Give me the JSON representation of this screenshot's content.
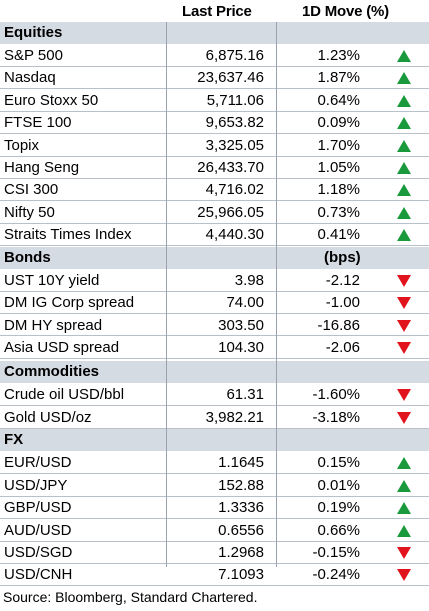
{
  "header": {
    "last_price": "Last Price",
    "move": "1D Move (%)"
  },
  "sections": [
    {
      "title": "Equities",
      "unit": "",
      "rows": [
        {
          "name": "S&P 500",
          "price": "6,875.16",
          "move": "1.23%",
          "dir": "up"
        },
        {
          "name": "Nasdaq",
          "price": "23,637.46",
          "move": "1.87%",
          "dir": "up"
        },
        {
          "name": "Euro Stoxx 50",
          "price": "5,711.06",
          "move": "0.64%",
          "dir": "up"
        },
        {
          "name": "FTSE 100",
          "price": "9,653.82",
          "move": "0.09%",
          "dir": "up"
        },
        {
          "name": "Topix",
          "price": "3,325.05",
          "move": "1.70%",
          "dir": "up"
        },
        {
          "name": "Hang Seng",
          "price": "26,433.70",
          "move": "1.05%",
          "dir": "up"
        },
        {
          "name": "CSI 300",
          "price": "4,716.02",
          "move": "1.18%",
          "dir": "up"
        },
        {
          "name": "Nifty 50",
          "price": "25,966.05",
          "move": "0.73%",
          "dir": "up"
        },
        {
          "name": "Straits Times Index",
          "price": "4,440.30",
          "move": "0.41%",
          "dir": "up"
        }
      ]
    },
    {
      "title": "Bonds",
      "unit": "(bps)",
      "rows": [
        {
          "name": "UST 10Y yield",
          "price": "3.98",
          "move": "-2.12",
          "dir": "down"
        },
        {
          "name": "DM IG Corp spread",
          "price": "74.00",
          "move": "-1.00",
          "dir": "down"
        },
        {
          "name": "DM HY spread",
          "price": "303.50",
          "move": "-16.86",
          "dir": "down"
        },
        {
          "name": "Asia USD spread",
          "price": "104.30",
          "move": "-2.06",
          "dir": "down"
        }
      ]
    },
    {
      "title": "Commodities",
      "unit": "",
      "rows": [
        {
          "name": "Crude oil USD/bbl",
          "price": "61.31",
          "move": "-1.60%",
          "dir": "down"
        },
        {
          "name": "Gold USD/oz",
          "price": "3,982.21",
          "move": "-3.18%",
          "dir": "down"
        }
      ]
    },
    {
      "title": "FX",
      "unit": "",
      "rows": [
        {
          "name": "",
          "price": "",
          "move": "",
          "dir": ""
        },
        {
          "name": "EUR/USD",
          "price": "1.1645",
          "move": "0.15%",
          "dir": "up"
        },
        {
          "name": "USD/JPY",
          "price": "152.88",
          "move": "0.01%",
          "dir": "up"
        },
        {
          "name": "GBP/USD",
          "price": "1.3336",
          "move": "0.19%",
          "dir": "up"
        },
        {
          "name": "AUD/USD",
          "price": "0.6556",
          "move": "0.66%",
          "dir": "up"
        },
        {
          "name": "USD/SGD",
          "price": "1.2968",
          "move": "-0.15%",
          "dir": "down"
        },
        {
          "name": "USD/CNH",
          "price": "7.1093",
          "move": "-0.24%",
          "dir": "down"
        }
      ]
    }
  ],
  "colors": {
    "up": "#1a9a3c",
    "down": "#e1141e",
    "section_bg": "#d5dbe3"
  },
  "footer": "Source: Bloomberg, Standard Chartered."
}
